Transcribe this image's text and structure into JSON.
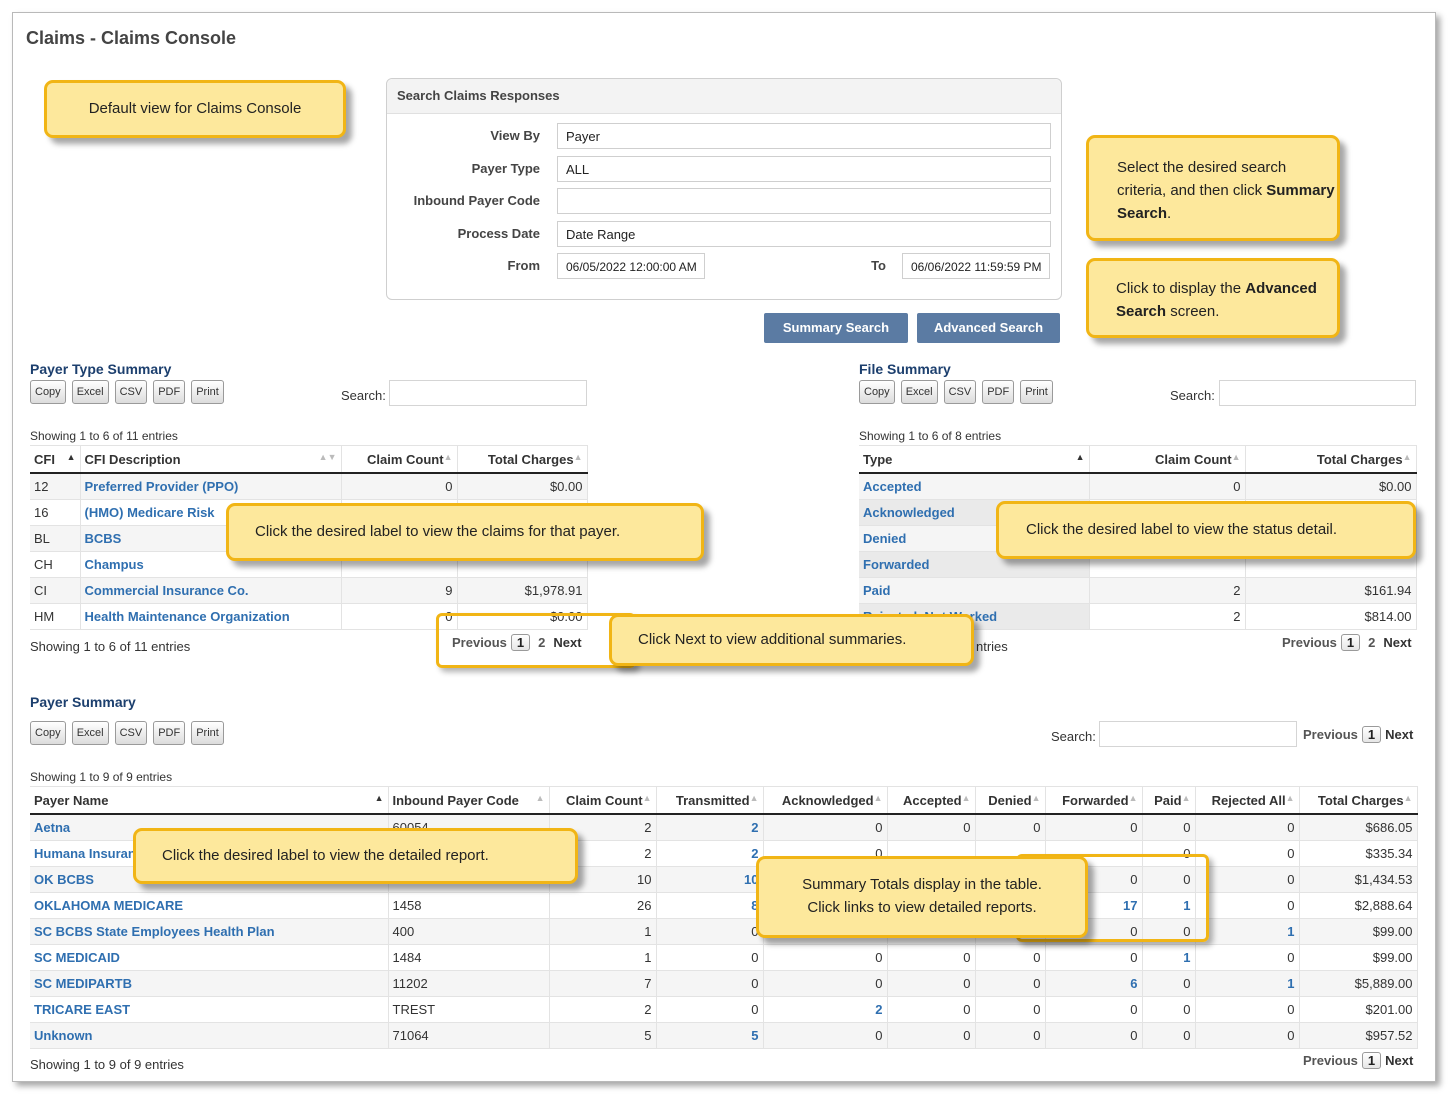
{
  "page_title": "Claims - Claims Console",
  "search_panel": {
    "title": "Search Claims Responses",
    "view_by_label": "View By",
    "view_by_value": "Payer",
    "payer_type_label": "Payer Type",
    "payer_type_value": "ALL",
    "inbound_payer_code_label": "Inbound Payer Code",
    "inbound_payer_code_value": "",
    "process_date_label": "Process Date",
    "process_date_value": "Date Range",
    "from_label": "From",
    "from_value": "06/05/2022 12:00:00 AM",
    "to_label": "To",
    "to_value": "06/06/2022 11:59:59 PM"
  },
  "buttons": {
    "summary_search": "Summary Search",
    "advanced_search": "Advanced Search"
  },
  "export_buttons": [
    "Copy",
    "Excel",
    "CSV",
    "PDF",
    "Print"
  ],
  "search_label": "Search:",
  "callouts": {
    "default_view": "Default view for Claims Console",
    "select_criteria_a": "Select the desired search criteria, and then click ",
    "select_criteria_b": "Summary Search",
    "select_criteria_c": ".",
    "advanced_a": "Click to display the ",
    "advanced_b": "Advanced Search",
    "advanced_c": " screen.",
    "payer_label": "Click the desired label to view the claims for that payer.",
    "status_detail": "Click the desired label to view the status detail.",
    "next_summaries": "Click Next to view additional summaries.",
    "detailed_report": "Click the desired label to view the detailed report.",
    "totals_line1": "Summary Totals display in the table.",
    "totals_line2": "Click links to view detailed reports."
  },
  "payer_type_summary": {
    "title": "Payer Type Summary",
    "showing_top": "Showing 1 to 6 of 11 entries",
    "showing_bottom": "Showing 1 to 6 of 11 entries",
    "headers": [
      "CFI",
      "CFI Description",
      "Claim Count",
      "Total Charges"
    ],
    "rows": [
      [
        "12",
        "Preferred Provider (PPO)",
        "0",
        "$0.00"
      ],
      [
        "16",
        "(HMO) Medicare Risk",
        "",
        ""
      ],
      [
        "BL",
        "BCBS",
        "",
        ""
      ],
      [
        "CH",
        "Champus",
        "",
        ""
      ],
      [
        "CI",
        "Commercial Insurance Co.",
        "9",
        "$1,978.91"
      ],
      [
        "HM",
        "Health Maintenance Organization",
        "0",
        "$0.00"
      ]
    ],
    "pager": {
      "previous": "Previous",
      "page1": "1",
      "page2": "2",
      "next": "Next"
    }
  },
  "file_summary": {
    "title": "File Summary",
    "showing_top": "Showing 1 to 6 of 8 entries",
    "showing_bottom": "ntries",
    "headers": [
      "Type",
      "Claim Count",
      "Total Charges"
    ],
    "rows": [
      [
        "Accepted",
        "0",
        "$0.00"
      ],
      [
        "Acknowledged",
        "",
        ""
      ],
      [
        "Denied",
        "",
        ""
      ],
      [
        "Forwarded",
        "",
        ""
      ],
      [
        "Paid",
        "2",
        "$161.94"
      ],
      [
        "Rejected, Not Worked",
        "2",
        "$814.00"
      ]
    ],
    "pager": {
      "previous": "Previous",
      "page1": "1",
      "page2": "2",
      "next": "Next"
    }
  },
  "payer_summary": {
    "title": "Payer Summary",
    "showing_top": "Showing 1 to 9 of 9 entries",
    "showing_bottom": "Showing 1 to 9 of 9 entries",
    "headers": [
      "Payer Name",
      "Inbound Payer Code",
      "Claim Count",
      "Transmitted",
      "Acknowledged",
      "Accepted",
      "Denied",
      "Forwarded",
      "Paid",
      "Rejected All",
      "Total Charges"
    ],
    "rows": [
      [
        "Aetna",
        "60054",
        "2",
        "2",
        "0",
        "0",
        "0",
        "0",
        "0",
        "0",
        "$686.05"
      ],
      [
        "Humana Insurance",
        "",
        "2",
        "2",
        "0",
        "",
        "",
        "",
        "0",
        "0",
        "$335.34"
      ],
      [
        "OK BCBS",
        "",
        "10",
        "10",
        "",
        "",
        "",
        "0",
        "0",
        "0",
        "$1,434.53"
      ],
      [
        "OKLAHOMA MEDICARE",
        "1458",
        "26",
        "8",
        "",
        "",
        "",
        "17",
        "1",
        "0",
        "$2,888.64"
      ],
      [
        "SC BCBS State Employees Health Plan",
        "400",
        "1",
        "0",
        "",
        "",
        "",
        "0",
        "0",
        "1",
        "$99.00"
      ],
      [
        "SC MEDICAID",
        "1484",
        "1",
        "0",
        "0",
        "0",
        "0",
        "0",
        "1",
        "0",
        "$99.00"
      ],
      [
        "SC MEDIPARTB",
        "11202",
        "7",
        "0",
        "0",
        "0",
        "0",
        "6",
        "0",
        "1",
        "$5,889.00"
      ],
      [
        "TRICARE EAST",
        "TREST",
        "2",
        "0",
        "2",
        "0",
        "0",
        "0",
        "0",
        "0",
        "$201.00"
      ],
      [
        "Unknown",
        "71064",
        "5",
        "5",
        "0",
        "0",
        "0",
        "0",
        "0",
        "0",
        "$957.52"
      ]
    ],
    "pager": {
      "previous": "Previous",
      "page1": "1",
      "next": "Next"
    }
  }
}
